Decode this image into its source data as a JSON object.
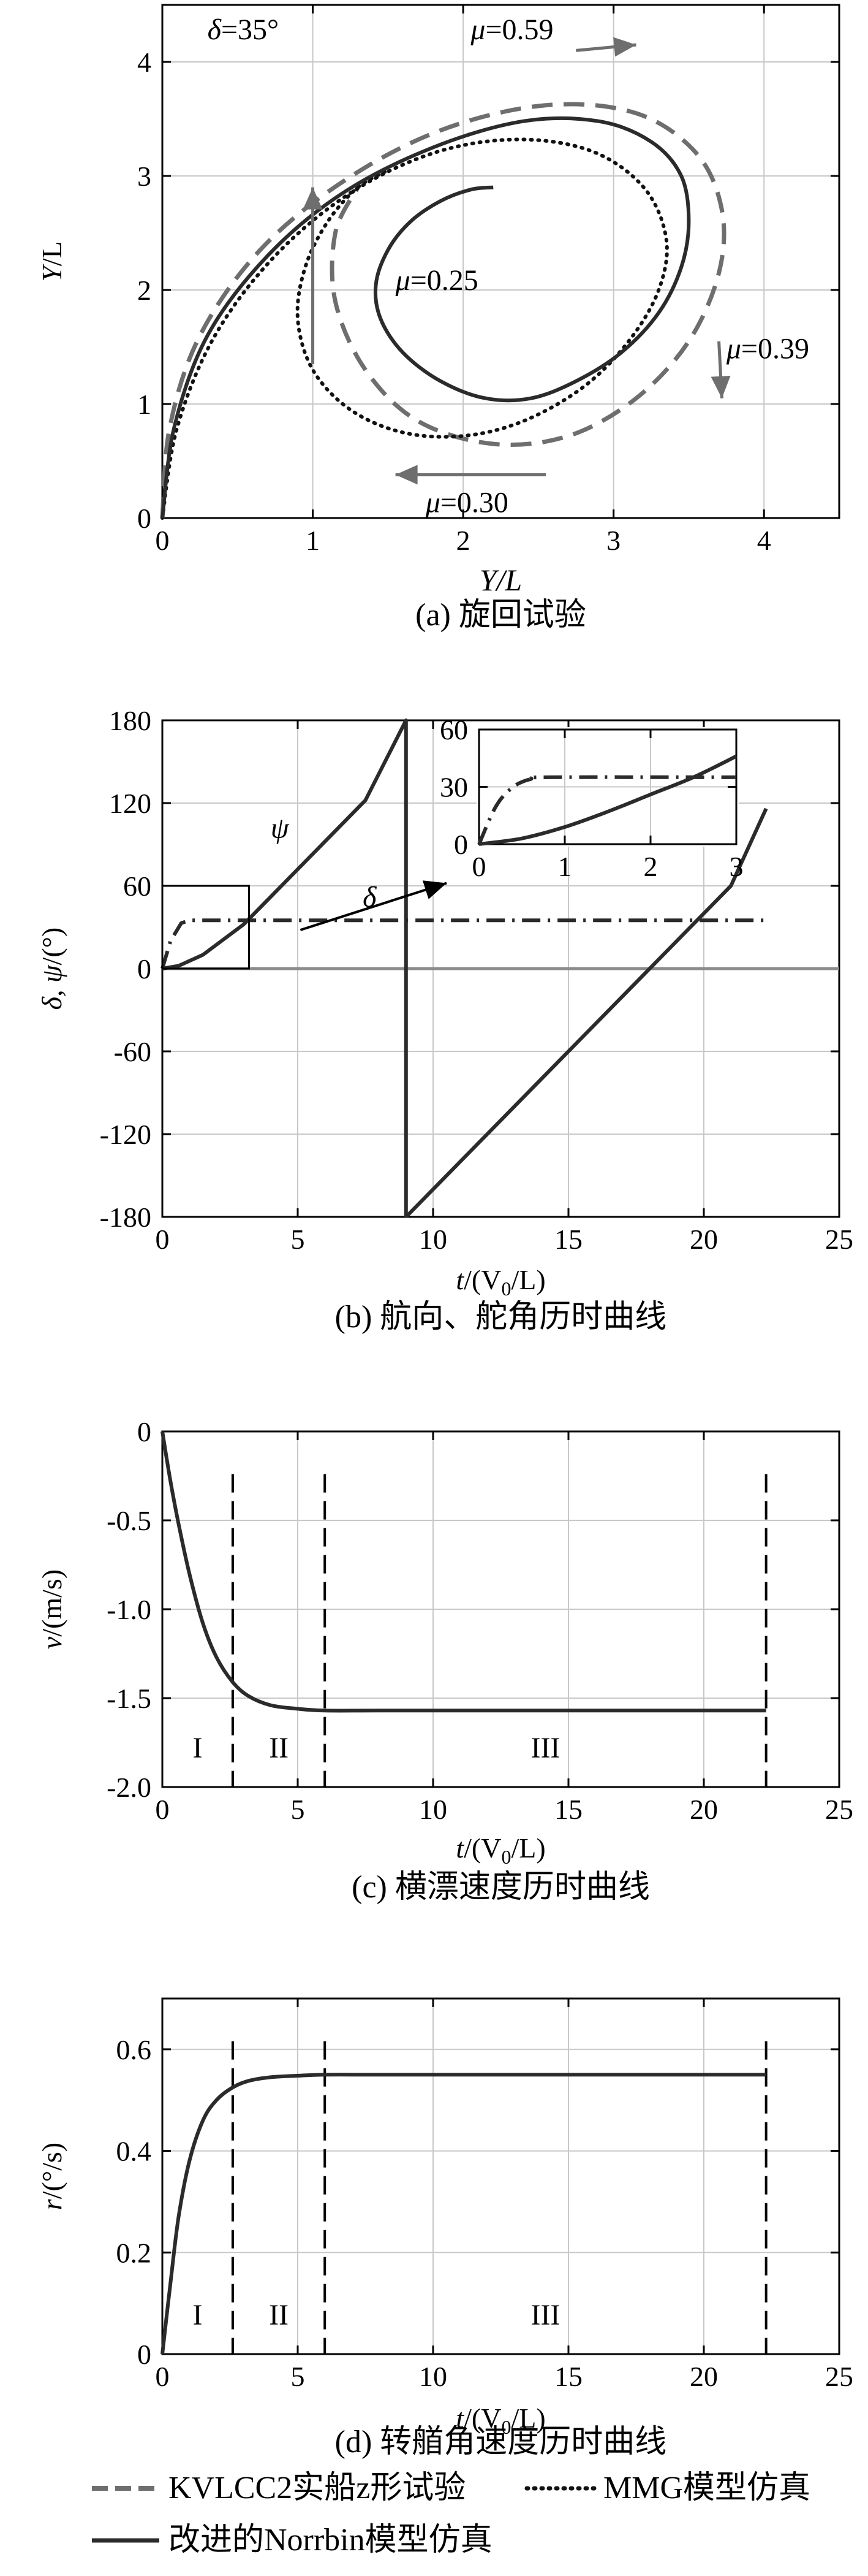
{
  "chart_data": [
    {
      "panel": "a",
      "type": "line",
      "caption": "(a) 旋回试验",
      "xlabel": "Y/L",
      "ylabel": "Y/L",
      "xlim": [
        0,
        4.5
      ],
      "ylim": [
        0,
        4.5
      ],
      "xticks": [
        "0",
        "1",
        "2",
        "3",
        "4"
      ],
      "yticks": [
        "0",
        "1",
        "2",
        "3",
        "4"
      ],
      "grid": true,
      "annotations": [
        {
          "text": "δ=35°",
          "x": 0.3,
          "y": 4.2
        },
        {
          "text": "μ=0.59",
          "x": 2.05,
          "y": 4.2
        },
        {
          "text": "μ=0.25",
          "x": 1.55,
          "y": 2.0
        },
        {
          "text": "μ=0.39",
          "x": 3.75,
          "y": 1.4
        },
        {
          "text": "μ=0.30",
          "x": 1.75,
          "y": 0.05
        }
      ],
      "series": [
        {
          "name": "改进的Norrbin模型仿真",
          "style": "solid",
          "x": [
            0.0,
            0.08,
            0.3,
            0.7,
            1.2,
            1.8,
            2.4,
            2.9,
            3.25,
            3.45,
            3.5,
            3.45,
            3.3,
            3.05,
            2.75,
            2.45,
            2.15,
            1.85,
            1.6,
            1.45,
            1.42,
            1.5,
            1.65,
            1.85,
            2.05,
            2.2
          ],
          "y": [
            0.0,
            0.8,
            1.6,
            2.3,
            2.85,
            3.25,
            3.48,
            3.48,
            3.3,
            3.0,
            2.6,
            2.2,
            1.8,
            1.45,
            1.2,
            1.05,
            1.05,
            1.2,
            1.45,
            1.75,
            2.05,
            2.35,
            2.6,
            2.78,
            2.88,
            2.9
          ]
        },
        {
          "name": "MMG模型仿真",
          "style": "dotted",
          "x": [
            0.0,
            0.1,
            0.35,
            0.75,
            1.25,
            1.8,
            2.35,
            2.85,
            3.2,
            3.35,
            3.3,
            3.1,
            2.8,
            2.4,
            2.0,
            1.6,
            1.25,
            1.0,
            0.9,
            0.95,
            1.1,
            1.3,
            1.5
          ],
          "y": [
            0.0,
            0.8,
            1.6,
            2.3,
            2.85,
            3.2,
            3.32,
            3.22,
            2.9,
            2.45,
            2.0,
            1.55,
            1.15,
            0.85,
            0.72,
            0.75,
            0.95,
            1.3,
            1.75,
            2.2,
            2.6,
            2.9,
            3.05
          ]
        },
        {
          "name": "KVLCC2实船z形试验",
          "style": "dashed",
          "x": [
            0.0,
            0.05,
            0.25,
            0.65,
            1.2,
            1.85,
            2.55,
            3.15,
            3.55,
            3.72,
            3.7,
            3.5,
            3.15,
            2.7,
            2.2,
            1.7,
            1.35,
            1.15,
            1.15,
            1.3
          ],
          "y": [
            0.0,
            0.8,
            1.6,
            2.35,
            2.95,
            3.4,
            3.62,
            3.55,
            3.2,
            2.7,
            2.15,
            1.55,
            1.05,
            0.72,
            0.65,
            0.85,
            1.3,
            1.9,
            2.5,
            2.9
          ]
        }
      ]
    },
    {
      "panel": "b",
      "type": "line",
      "caption": "(b) 航向、舵角历时曲线",
      "xlabel": "t/(V0/L)",
      "ylabel": "δ, ψ/(°)",
      "xlim": [
        0,
        25
      ],
      "ylim": [
        -180,
        180
      ],
      "xticks": [
        "0",
        "5",
        "10",
        "15",
        "20",
        "25"
      ],
      "yticks": [
        "180",
        "120",
        "60",
        "0",
        "-60",
        "-120",
        "-180"
      ],
      "grid": true,
      "annotations": [
        {
          "text": "ψ",
          "x": 4.0,
          "y": 95
        },
        {
          "text": "δ",
          "x": 7.4,
          "y": 45
        }
      ],
      "series": [
        {
          "name": "ψ",
          "style": "solid",
          "x": [
            0,
            0.6,
            1.5,
            3,
            4.5,
            6,
            7.5,
            9.0,
            9.0,
            9.3,
            12,
            15,
            18,
            21,
            22.3
          ],
          "y": [
            0,
            2,
            10,
            32,
            62,
            92,
            122,
            180,
            -180,
            -174,
            -120,
            -60,
            0,
            60,
            116
          ]
        },
        {
          "name": "δ",
          "style": "dashdot",
          "x": [
            0,
            0.3,
            0.7,
            1.0,
            22.3
          ],
          "y": [
            0,
            20,
            33,
            35,
            35
          ]
        }
      ],
      "inset": {
        "xlim": [
          0,
          3
        ],
        "ylim": [
          0,
          60
        ],
        "xticks": [
          "0",
          "1",
          "2",
          "3"
        ],
        "yticks": [
          "60",
          "30",
          "0"
        ],
        "series": [
          {
            "name": "ψ",
            "style": "solid",
            "x": [
              0,
              0.5,
              1.0,
              1.5,
              2.0,
              2.5,
              3.0
            ],
            "y": [
              0,
              3,
              9,
              17,
              26,
              35,
              46
            ]
          },
          {
            "name": "δ",
            "style": "dashdot",
            "x": [
              0,
              0.2,
              0.4,
              0.6,
              0.8,
              3.0
            ],
            "y": [
              0,
              20,
              30,
              34,
              35,
              35
            ]
          }
        ]
      }
    },
    {
      "panel": "c",
      "type": "line",
      "caption": "(c) 横漂速度历时曲线",
      "xlabel": "t/(V0/L)",
      "ylabel": "v/(m/s)",
      "xlim": [
        0,
        25
      ],
      "ylim": [
        -2.0,
        0
      ],
      "xticks": [
        "0",
        "5",
        "10",
        "15",
        "20",
        "25"
      ],
      "yticks": [
        "0",
        "-0.5",
        "-1.0",
        "-1.5",
        "-2.0"
      ],
      "grid": true,
      "regions": [
        "I",
        "II",
        "III"
      ],
      "dividers": [
        2.6,
        6.0,
        22.3
      ],
      "series": [
        {
          "name": "改进的Norrbin模型仿真",
          "style": "solid",
          "x": [
            0,
            0.3,
            0.6,
            1.0,
            1.5,
            2.0,
            2.6,
            3.2,
            4.0,
            5.0,
            6.0,
            8.0,
            12,
            16,
            20,
            22.3
          ],
          "y": [
            0,
            -0.28,
            -0.52,
            -0.8,
            -1.08,
            -1.27,
            -1.41,
            -1.49,
            -1.54,
            -1.56,
            -1.57,
            -1.57,
            -1.57,
            -1.57,
            -1.57,
            -1.57
          ]
        }
      ]
    },
    {
      "panel": "d",
      "type": "line",
      "caption": "(d) 转艏角速度历时曲线",
      "xlabel": "t/(V0/L)",
      "ylabel": "r/(°/s)",
      "xlim": [
        0,
        25
      ],
      "ylim": [
        0,
        0.7
      ],
      "xticks": [
        "0",
        "5",
        "10",
        "15",
        "20",
        "25"
      ],
      "yticks": [
        "0.6",
        "0.4",
        "0.2",
        "0"
      ],
      "grid": true,
      "regions": [
        "I",
        "II",
        "III"
      ],
      "dividers": [
        2.6,
        6.0,
        22.3
      ],
      "series": [
        {
          "name": "改进的Norrbin模型仿真",
          "style": "solid",
          "x": [
            0,
            0.3,
            0.6,
            1.0,
            1.5,
            2.0,
            2.6,
            3.2,
            4.0,
            5.0,
            6.0,
            8.0,
            12,
            16,
            20,
            22.3
          ],
          "y": [
            0,
            0.14,
            0.27,
            0.38,
            0.46,
            0.5,
            0.525,
            0.538,
            0.545,
            0.548,
            0.55,
            0.55,
            0.55,
            0.55,
            0.55,
            0.55
          ]
        }
      ]
    }
  ],
  "legend": {
    "items": [
      {
        "label": "KVLCC2实船z形试验",
        "style": "dashed"
      },
      {
        "label": "MMG模型仿真",
        "style": "dotted"
      },
      {
        "label": "改进的Norrbin模型仿真",
        "style": "solid"
      }
    ]
  },
  "colors": {
    "norrbin": "#2b2b2b",
    "mmg": "#111111",
    "kvlcc2": "#6e6e6e",
    "grid": "#c8c8c8",
    "zero_line": "#8c8c8c",
    "arrow": "#6e6e6e"
  }
}
